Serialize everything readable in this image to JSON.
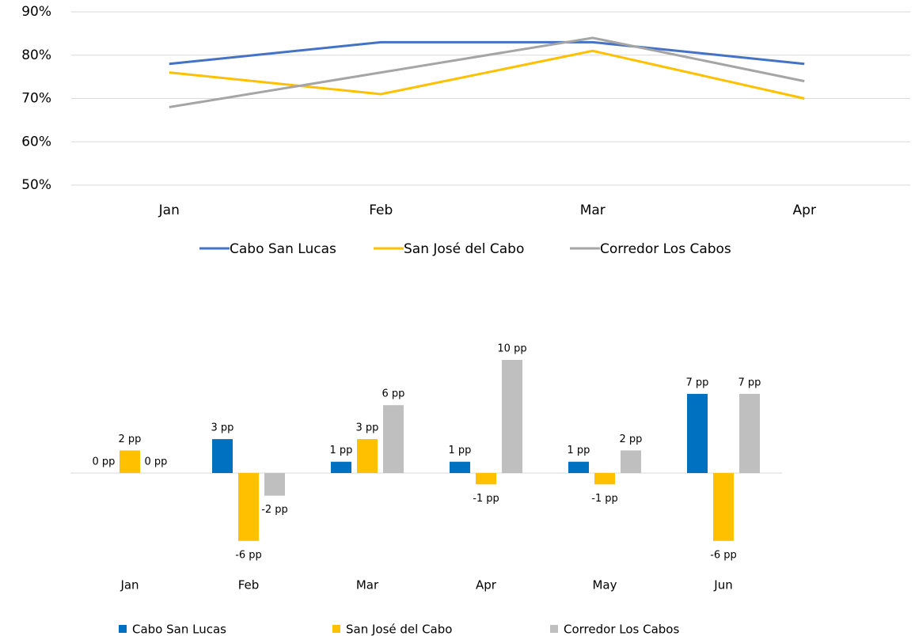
{
  "chart_data": [
    {
      "type": "line",
      "categories": [
        "Jan",
        "Feb",
        "Mar",
        "Apr"
      ],
      "ylim": [
        50,
        90
      ],
      "yticks": [
        {
          "value": 50,
          "label": "50%"
        },
        {
          "value": 60,
          "label": "60%"
        },
        {
          "value": 70,
          "label": "70%"
        },
        {
          "value": 80,
          "label": "80%"
        },
        {
          "value": 90,
          "label": "90%"
        }
      ],
      "grid": true,
      "legend": "bottom",
      "series": [
        {
          "name": "Cabo San Lucas",
          "color": "#4472c4",
          "values": [
            78,
            83,
            83,
            78
          ]
        },
        {
          "name": "San José del Cabo",
          "color": "#ffc000",
          "values": [
            76,
            71,
            81,
            70
          ]
        },
        {
          "name": "Corredor Los Cabos",
          "color": "#a5a5a5",
          "values": [
            68,
            76,
            84,
            74
          ]
        }
      ]
    },
    {
      "type": "bar",
      "categories": [
        "Jan",
        "Feb",
        "Mar",
        "Apr",
        "May",
        "Jun"
      ],
      "legend": "bottom",
      "series": [
        {
          "name": "Cabo San Lucas",
          "color": "#0070c0",
          "values": [
            0,
            3,
            1,
            1,
            1,
            7
          ],
          "value_labels": [
            "0 pp",
            "3 pp",
            "1 pp",
            "1 pp",
            "1 pp",
            "7 pp"
          ]
        },
        {
          "name": "San José del Cabo",
          "color": "#ffc000",
          "values": [
            2,
            -6,
            3,
            -1,
            -1,
            -6
          ],
          "value_labels": [
            "2 pp",
            "-6 pp",
            "3 pp",
            "-1 pp",
            "-1 pp",
            "-6 pp"
          ]
        },
        {
          "name": "Corredor Los Cabos",
          "color": "#bfbfbf",
          "values": [
            0,
            -2,
            6,
            10,
            2,
            7
          ],
          "value_labels": [
            "0 pp",
            "-2 pp",
            "6 pp",
            "10 pp",
            "2 pp",
            "7 pp"
          ]
        }
      ]
    }
  ]
}
